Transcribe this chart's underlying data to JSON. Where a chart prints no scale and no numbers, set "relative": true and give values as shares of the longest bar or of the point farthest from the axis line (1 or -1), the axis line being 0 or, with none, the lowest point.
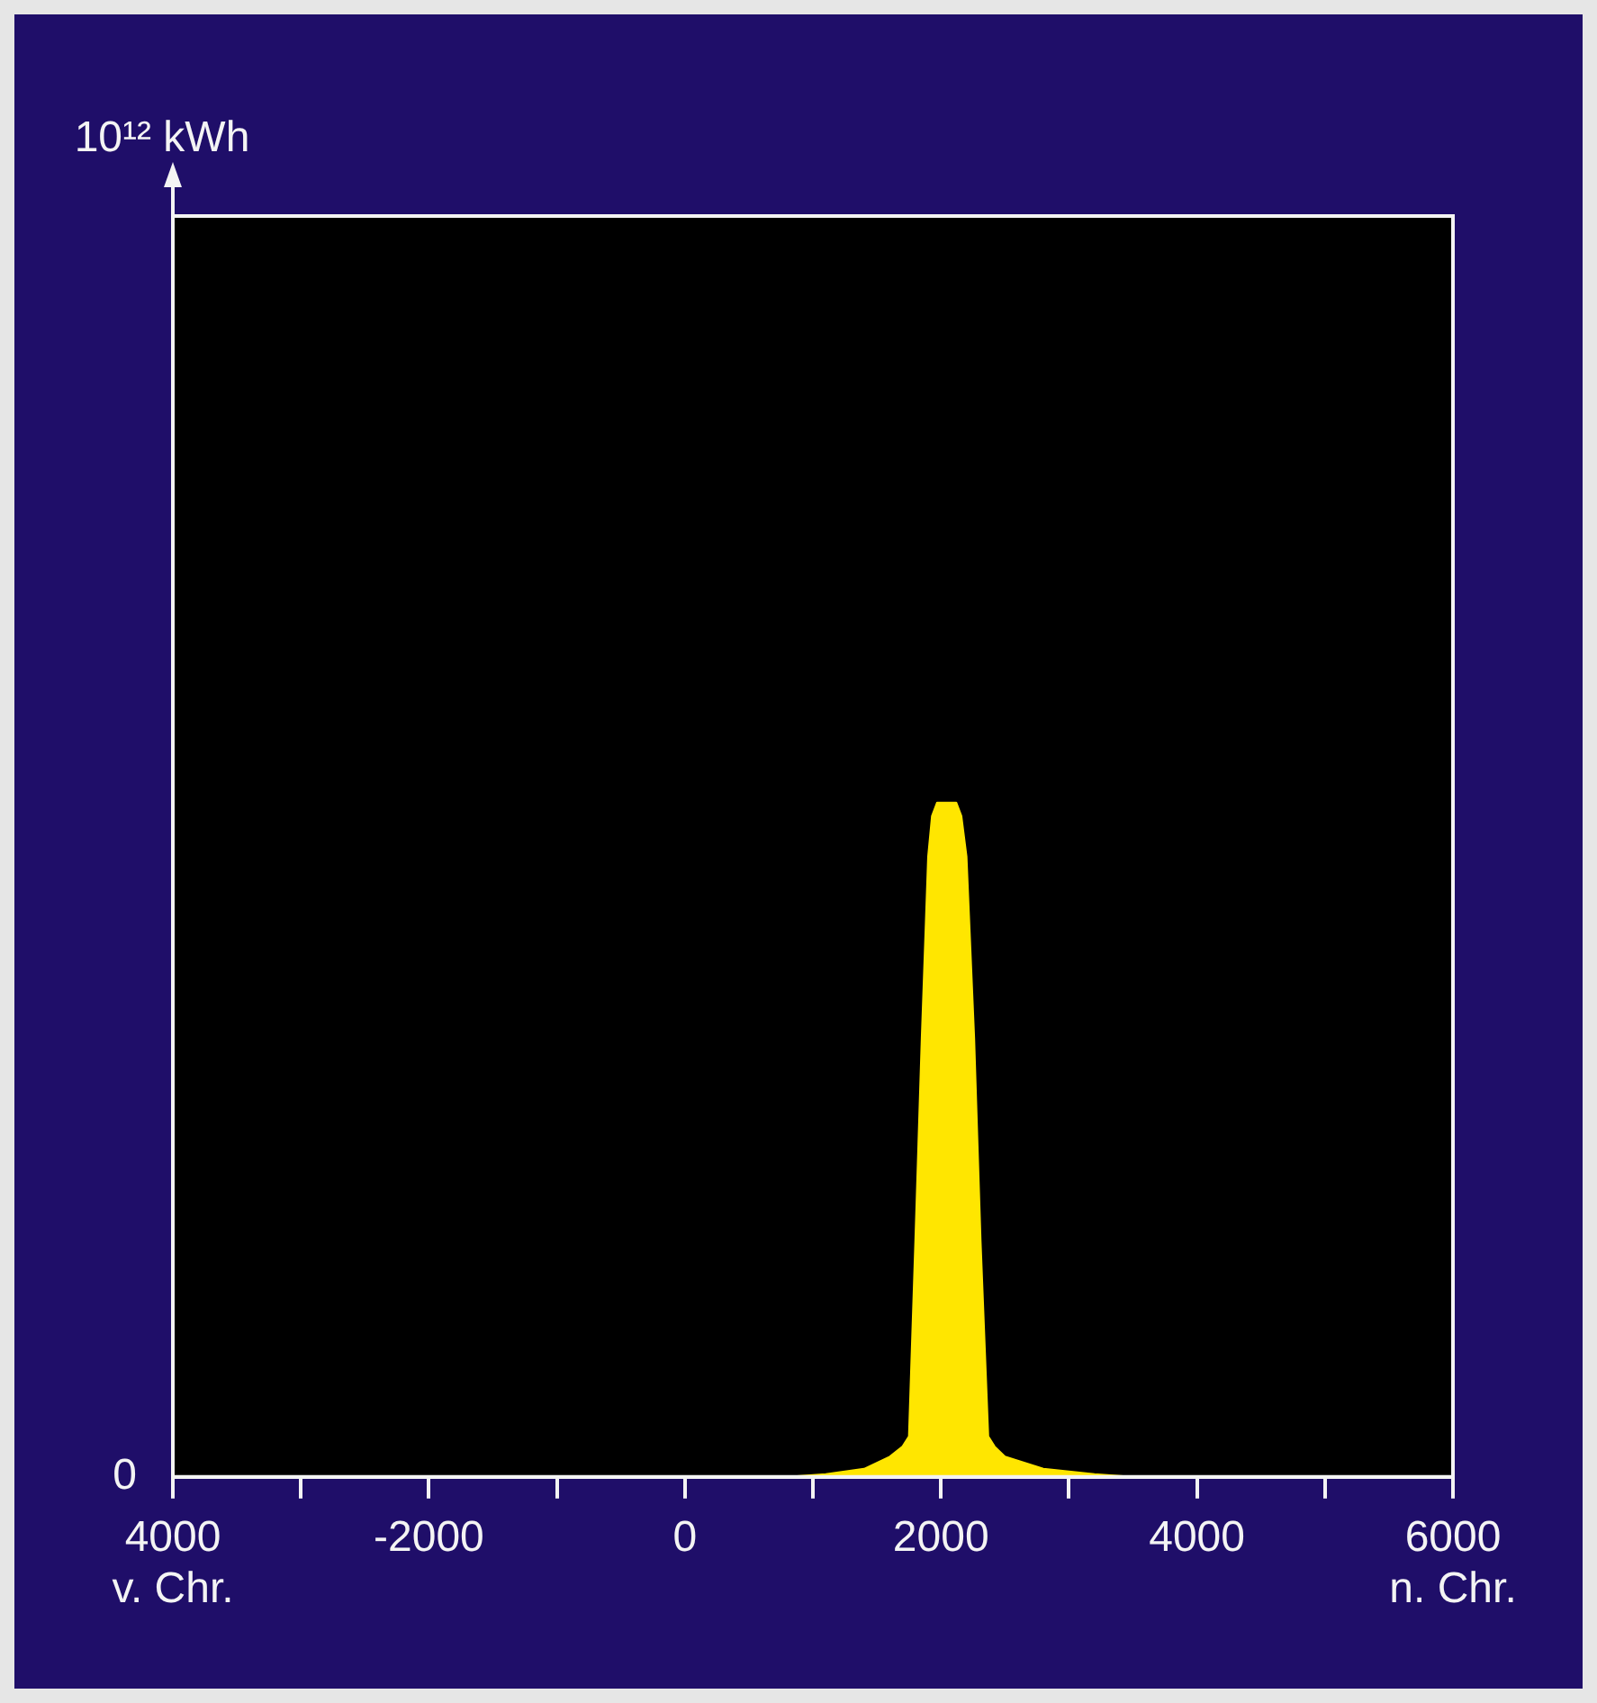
{
  "chart_data": {
    "type": "area",
    "relative": true,
    "grid": false,
    "legend": false,
    "marker": "none",
    "xlim": [
      -4000,
      6000
    ],
    "xticks": [
      {
        "value": -4000,
        "label": "4000\nv. Chr."
      },
      {
        "value": -3000,
        "label": null
      },
      {
        "value": -2000,
        "label": "-2000"
      },
      {
        "value": -1000,
        "label": null
      },
      0,
      {
        "value": 1000,
        "label": null
      },
      2000,
      {
        "value": 3000,
        "label": null
      },
      4000,
      {
        "value": 5000,
        "label": null
      },
      {
        "value": 6000,
        "label": "6000\nn. Chr."
      }
    ],
    "annotations": [
      "10¹² kWh",
      "0"
    ],
    "series": [
      {
        "color": "#ffe600",
        "x": [
          -4000,
          800,
          1100,
          1400,
          1600,
          1700,
          1750,
          1800,
          1850,
          1900,
          1930,
          1970,
          2050,
          2120,
          2160,
          2200,
          2260,
          2310,
          2370,
          2420,
          2500,
          2800,
          3200,
          3500,
          6000
        ],
        "values": [
          0,
          0,
          0.004,
          0.012,
          0.03,
          0.045,
          0.06,
          0.35,
          0.65,
          0.92,
          0.98,
          1,
          1,
          1,
          0.98,
          0.92,
          0.65,
          0.35,
          0.06,
          0.045,
          0.03,
          0.012,
          0.004,
          0,
          0
        ]
      }
    ]
  }
}
